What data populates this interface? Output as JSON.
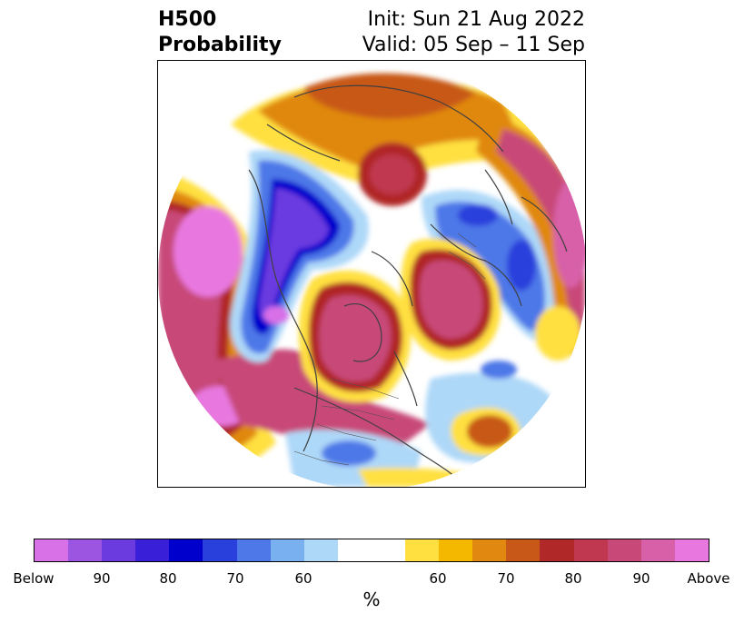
{
  "header": {
    "title_line1": "H500",
    "title_line2": "Probability",
    "init_text": "Init: Sun 21 Aug 2022",
    "valid_text": "Valid: 05 Sep – 11 Sep"
  },
  "colorbar": {
    "colors": [
      "#d870e8",
      "#9b55e0",
      "#6b3be0",
      "#3a1fd8",
      "#0000cc",
      "#2a40dc",
      "#4e78e8",
      "#78b0f0",
      "#aed8f8",
      "#ffffff",
      "#ffe040",
      "#f5b800",
      "#e08810",
      "#c85818",
      "#b02828",
      "#c03850",
      "#c84878",
      "#d860a8",
      "#e878e0"
    ],
    "tick_labels": [
      "Below",
      "90",
      "80",
      "70",
      "60",
      "60",
      "70",
      "80",
      "90",
      "Above"
    ],
    "unit": "%"
  },
  "map": {
    "field_colors": {
      "above_max": "#e878e0",
      "above_90": "#c84878",
      "above_80": "#b02828",
      "above_70": "#e08810",
      "above_60": "#ffe040",
      "below_60": "#aed8f8",
      "below_70": "#4e78e8",
      "below_80": "#0000cc",
      "below_90": "#6b3be0",
      "below_max": "#d870e8"
    }
  }
}
